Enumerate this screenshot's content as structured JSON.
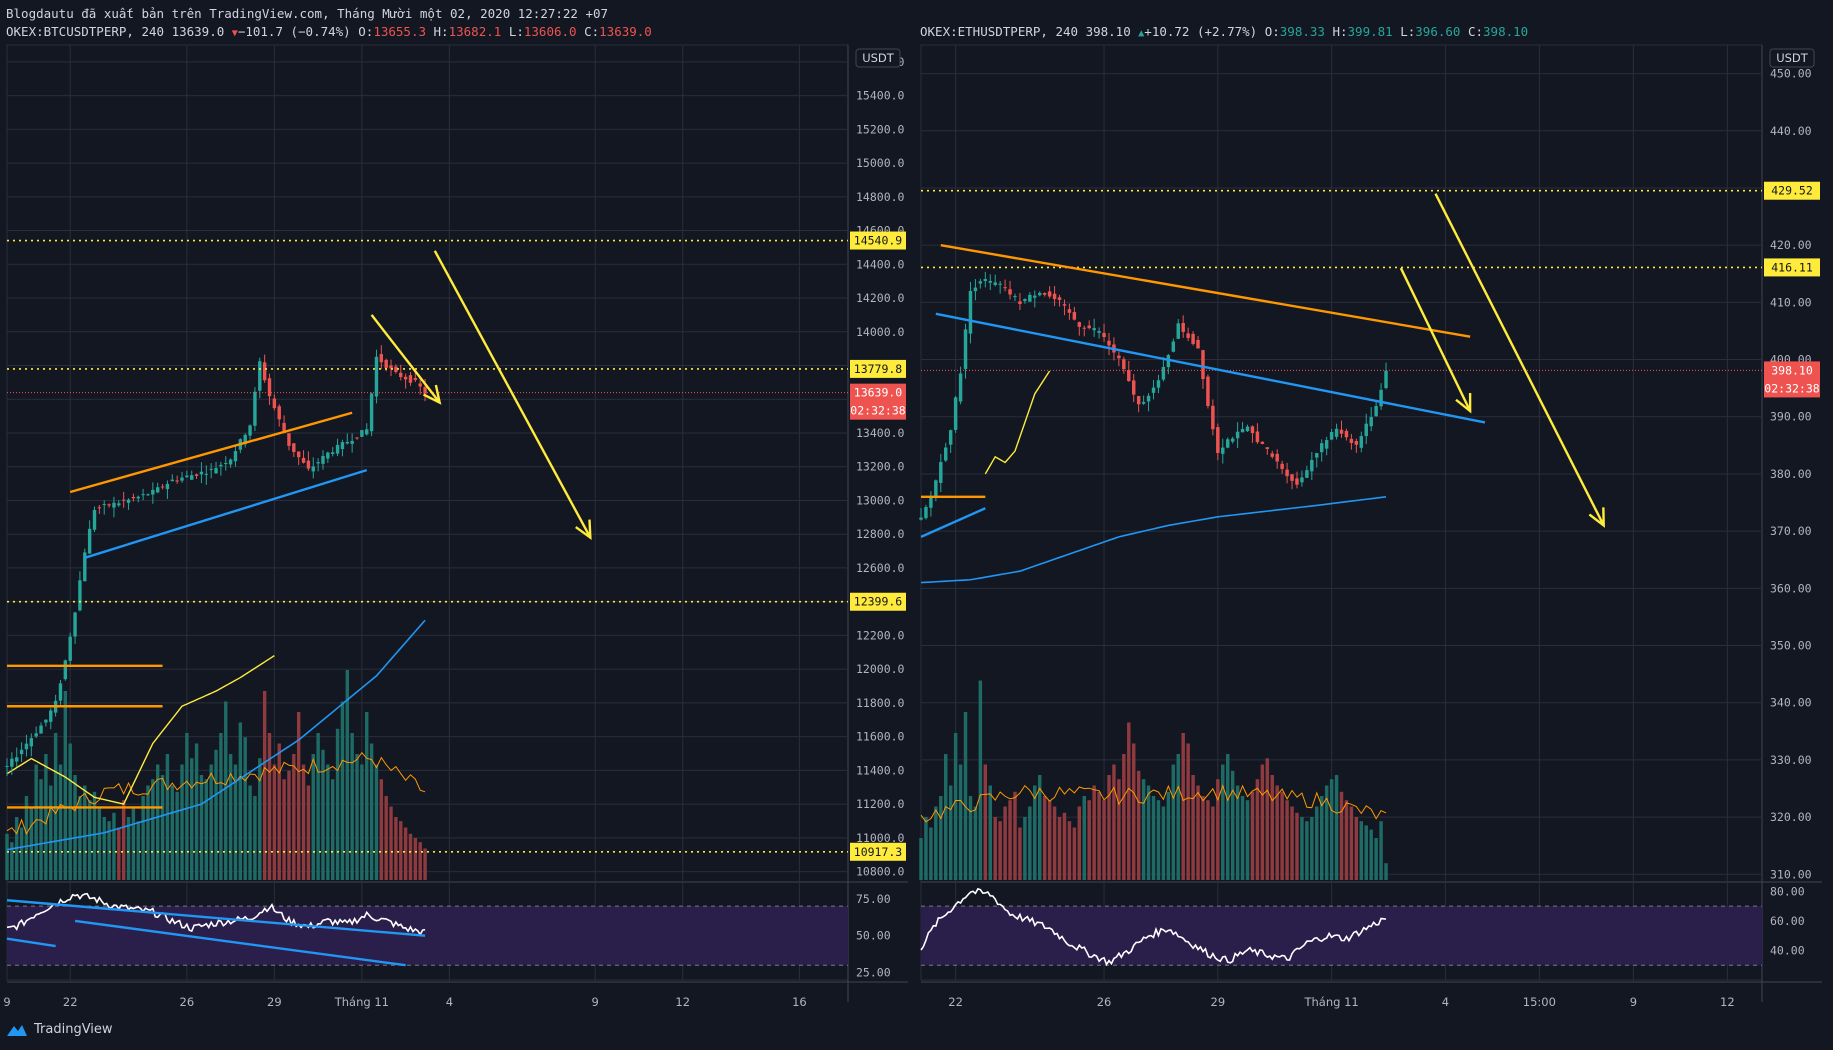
{
  "header": {
    "publish_line": "Blogdautu đã xuất bản trên TradingView.com, Tháng Mười một 02, 2020 12:27:22 +07"
  },
  "colors": {
    "background": "#131722",
    "grid": "#2a2e39",
    "up": "#26a69a",
    "down": "#ef5350",
    "vol_up": "#1e6b66",
    "vol_down": "#8e3a3e",
    "level": "#ffeb3b",
    "arrow": "#ffeb3b",
    "trend_orange": "#ff9800",
    "trend_blue": "#2196f3",
    "ma": "#ff9800",
    "rsi": "#ffffff",
    "rsi_band": "#2a1f4a",
    "price_tag": "#ef5350"
  },
  "branding": {
    "logo_text": "TradingView",
    "logo_icon": "tradingview-logo-icon"
  },
  "chart_data": [
    {
      "type": "candlestick",
      "symbol_line": {
        "symbol": "OKEX:BTCUSDTPERP, 240",
        "last": "13639.0",
        "change_arrow": "down-triangle",
        "change": "−101.7 (−0.74%)",
        "o_label": "O:",
        "o": "13655.3",
        "h_label": "H:",
        "h": "13682.1",
        "l_label": "L:",
        "l": "13606.0",
        "c_label": "C:",
        "c": "13639.0"
      },
      "currency": "USDT",
      "ylim": [
        10750,
        15700
      ],
      "y_ticks": [
        "15600.0",
        "15400.0",
        "15200.0",
        "15000.0",
        "14800.0",
        "14600.0",
        "14400.0",
        "14200.0",
        "14000.0",
        "13800.0",
        "13600.0",
        "13400.0",
        "13200.0",
        "13000.0",
        "12800.0",
        "12600.0",
        "12400.0",
        "12200.0",
        "12000.0",
        "11800.0",
        "11600.0",
        "11400.0",
        "11200.0",
        "11000.0",
        "10800.0"
      ],
      "x_ticks": [
        {
          "label": "9",
          "x": 0
        },
        {
          "label": "22",
          "x": 13
        },
        {
          "label": "26",
          "x": 37
        },
        {
          "label": "29",
          "x": 55
        },
        {
          "label": "Tháng 11",
          "x": 73
        },
        {
          "label": "4",
          "x": 91
        },
        {
          "label": "9",
          "x": 121
        },
        {
          "label": "12",
          "x": 139
        },
        {
          "label": "16",
          "x": 163
        }
      ],
      "xlim": [
        0,
        173
      ],
      "last_bar": 86,
      "levels": [
        {
          "value": 14540.9,
          "label": "14540.9"
        },
        {
          "value": 13779.8,
          "label": "13779.8"
        },
        {
          "value": 12399.6,
          "label": "12399.6"
        },
        {
          "value": 10917.3,
          "label": "10917.3"
        }
      ],
      "current_price": {
        "value": 13639.0,
        "label": "13639.0",
        "countdown": "02:32:38"
      },
      "anchors": [
        [
          0,
          11420
        ],
        [
          4,
          11560
        ],
        [
          8,
          11700
        ],
        [
          10,
          11800
        ],
        [
          12,
          12050
        ],
        [
          14,
          12350
        ],
        [
          16,
          12700
        ],
        [
          18,
          12950
        ],
        [
          22,
          12980
        ],
        [
          26,
          13010
        ],
        [
          30,
          13050
        ],
        [
          34,
          13120
        ],
        [
          38,
          13150
        ],
        [
          42,
          13180
        ],
        [
          46,
          13250
        ],
        [
          50,
          13450
        ],
        [
          52,
          13820
        ],
        [
          54,
          13620
        ],
        [
          58,
          13330
        ],
        [
          62,
          13180
        ],
        [
          66,
          13280
        ],
        [
          70,
          13350
        ],
        [
          74,
          13420
        ],
        [
          76,
          13850
        ],
        [
          80,
          13750
        ],
        [
          84,
          13700
        ],
        [
          86,
          13639
        ]
      ],
      "trendlines": [
        {
          "color": "orange",
          "from": [
            13,
            13050
          ],
          "to": [
            71,
            13520
          ]
        },
        {
          "color": "blue",
          "from": [
            16,
            12660
          ],
          "to": [
            74,
            13180
          ]
        },
        {
          "color": "orange",
          "from": [
            0,
            12020
          ],
          "to": [
            32,
            12020
          ]
        },
        {
          "color": "orange",
          "from": [
            0,
            11780
          ],
          "to": [
            32,
            11780
          ]
        },
        {
          "color": "orange",
          "from": [
            0,
            11180
          ],
          "to": [
            32,
            11180
          ]
        }
      ],
      "arrows": [
        {
          "from": [
            75,
            14100
          ],
          "to": [
            89,
            13580
          ]
        },
        {
          "from": [
            88,
            14480
          ],
          "to": [
            120,
            12780
          ]
        }
      ],
      "ma_long": [
        [
          0,
          10930
        ],
        [
          20,
          11030
        ],
        [
          40,
          11200
        ],
        [
          60,
          11580
        ],
        [
          76,
          11960
        ],
        [
          86,
          12290
        ]
      ],
      "ma_short": [
        [
          0,
          11380
        ],
        [
          5,
          11470
        ],
        [
          12,
          11360
        ],
        [
          18,
          11240
        ],
        [
          24,
          11200
        ],
        [
          30,
          11560
        ],
        [
          36,
          11780
        ],
        [
          43,
          11870
        ],
        [
          48,
          11950
        ],
        [
          55,
          12080
        ]
      ],
      "volume_max": 100,
      "volume": [
        22,
        18,
        30,
        25,
        40,
        35,
        55,
        48,
        60,
        45,
        70,
        55,
        90,
        65,
        50,
        40,
        45,
        38,
        42,
        35,
        30,
        28,
        32,
        25,
        38,
        30,
        35,
        28,
        40,
        45,
        48,
        55,
        50,
        60,
        45,
        42,
        55,
        70,
        58,
        65,
        50,
        48,
        55,
        62,
        70,
        85,
        60,
        55,
        75,
        68,
        45,
        40,
        58,
        90,
        70,
        55,
        65,
        48,
        52,
        60,
        80,
        55,
        45,
        60,
        70,
        62,
        55,
        48,
        72,
        85,
        100,
        70,
        60,
        55,
        80,
        65,
        55,
        48,
        40,
        35,
        30,
        28,
        25,
        22,
        20,
        18,
        15
      ],
      "volume_ma": [
        [
          0,
          22
        ],
        [
          20,
          42
        ],
        [
          40,
          48
        ],
        [
          55,
          52
        ],
        [
          65,
          55
        ],
        [
          75,
          58
        ],
        [
          86,
          42
        ]
      ],
      "rsi": {
        "ticks": [
          "75.00",
          "50.00",
          "25.00"
        ],
        "band": [
          30,
          70
        ],
        "series": [
          [
            0,
            54
          ],
          [
            3,
            58
          ],
          [
            6,
            65
          ],
          [
            10,
            72
          ],
          [
            14,
            78
          ],
          [
            18,
            75
          ],
          [
            22,
            70
          ],
          [
            26,
            68
          ],
          [
            30,
            66
          ],
          [
            34,
            60
          ],
          [
            38,
            55
          ],
          [
            42,
            58
          ],
          [
            46,
            60
          ],
          [
            50,
            62
          ],
          [
            54,
            70
          ],
          [
            58,
            60
          ],
          [
            62,
            56
          ],
          [
            66,
            60
          ],
          [
            70,
            58
          ],
          [
            74,
            64
          ],
          [
            78,
            60
          ],
          [
            82,
            55
          ],
          [
            86,
            52
          ]
        ],
        "trendlines": [
          {
            "from": [
              0,
              74
            ],
            "to": [
              86,
              50
            ]
          },
          {
            "from": [
              14,
              60
            ],
            "to": [
              82,
              30
            ]
          },
          {
            "from": [
              0,
              48
            ],
            "to": [
              10,
              43
            ]
          }
        ]
      }
    },
    {
      "type": "candlestick",
      "symbol_line": {
        "symbol": "OKEX:ETHUSDTPERP, 240",
        "last": "398.10",
        "change_arrow": "up-triangle",
        "change": "+10.72 (+2.77%)",
        "o_label": "O:",
        "o": "398.33",
        "h_label": "H:",
        "h": "399.81",
        "l_label": "L:",
        "l": "396.60",
        "c_label": "C:",
        "c": "398.10"
      },
      "currency": "USDT",
      "ylim": [
        309,
        455
      ],
      "y_ticks": [
        "450.00",
        "440.00",
        "430.00",
        "420.00",
        "410.00",
        "400.00",
        "390.00",
        "380.00",
        "370.00",
        "360.00",
        "350.00",
        "340.00",
        "330.00",
        "320.00",
        "310.00"
      ],
      "x_ticks": [
        {
          "label": "22",
          "x": 7
        },
        {
          "label": "26",
          "x": 37
        },
        {
          "label": "29",
          "x": 60
        },
        {
          "label": "Tháng 11",
          "x": 83
        },
        {
          "label": "4",
          "x": 106
        },
        {
          "label": "15:00",
          "x": 125
        },
        {
          "label": "9",
          "x": 144
        },
        {
          "label": "12",
          "x": 163
        }
      ],
      "xlim": [
        0,
        170
      ],
      "last_bar": 94,
      "levels": [
        {
          "value": 429.52,
          "label": "429.52"
        },
        {
          "value": 416.11,
          "label": "416.11"
        }
      ],
      "current_price": {
        "value": 398.1,
        "label": "398.10",
        "countdown": "02:32:38"
      },
      "anchors": [
        [
          0,
          372
        ],
        [
          2,
          376
        ],
        [
          4,
          382
        ],
        [
          6,
          388
        ],
        [
          8,
          398
        ],
        [
          10,
          412
        ],
        [
          12,
          414
        ],
        [
          16,
          413
        ],
        [
          20,
          410
        ],
        [
          24,
          412
        ],
        [
          28,
          410
        ],
        [
          32,
          406
        ],
        [
          36,
          405
        ],
        [
          40,
          400
        ],
        [
          44,
          392
        ],
        [
          48,
          396
        ],
        [
          52,
          406
        ],
        [
          56,
          402
        ],
        [
          58,
          392
        ],
        [
          60,
          384
        ],
        [
          62,
          386
        ],
        [
          66,
          388
        ],
        [
          70,
          384
        ],
        [
          74,
          380
        ],
        [
          76,
          378
        ],
        [
          80,
          384
        ],
        [
          84,
          388
        ],
        [
          88,
          385
        ],
        [
          92,
          392
        ],
        [
          94,
          398
        ]
      ],
      "trendlines": [
        {
          "color": "orange",
          "from": [
            4,
            420
          ],
          "to": [
            111,
            404
          ]
        },
        {
          "color": "blue",
          "from": [
            3,
            408
          ],
          "to": [
            114,
            389
          ]
        },
        {
          "color": "orange",
          "from": [
            0,
            376
          ],
          "to": [
            13,
            376
          ]
        },
        {
          "color": "blue",
          "from": [
            0,
            369
          ],
          "to": [
            13,
            374
          ]
        }
      ],
      "arrows": [
        {
          "from": [
            97,
            416
          ],
          "to": [
            111,
            391
          ]
        },
        {
          "from": [
            104,
            429
          ],
          "to": [
            138,
            371
          ]
        }
      ],
      "ma_long": [
        [
          0,
          361
        ],
        [
          10,
          361.5
        ],
        [
          20,
          363
        ],
        [
          30,
          366
        ],
        [
          40,
          369
        ],
        [
          50,
          371
        ],
        [
          60,
          372.5
        ],
        [
          70,
          373.5
        ],
        [
          80,
          374.5
        ],
        [
          94,
          376
        ]
      ],
      "ma_short": [
        [
          13,
          380
        ],
        [
          15,
          383
        ],
        [
          17,
          382
        ],
        [
          19,
          384
        ],
        [
          21,
          389
        ],
        [
          23,
          394
        ],
        [
          26,
          398
        ]
      ],
      "volume_max": 100,
      "volume": [
        20,
        30,
        25,
        35,
        40,
        60,
        45,
        70,
        55,
        80,
        40,
        35,
        95,
        55,
        45,
        30,
        28,
        35,
        38,
        42,
        25,
        30,
        35,
        45,
        50,
        40,
        38,
        35,
        30,
        32,
        28,
        25,
        35,
        40,
        38,
        45,
        42,
        38,
        50,
        55,
        48,
        60,
        75,
        65,
        52,
        48,
        45,
        40,
        38,
        35,
        42,
        55,
        60,
        70,
        65,
        50,
        45,
        40,
        38,
        35,
        48,
        55,
        60,
        52,
        45,
        40,
        38,
        42,
        48,
        55,
        58,
        50,
        45,
        42,
        38,
        35,
        32,
        30,
        28,
        30,
        35,
        40,
        45,
        48,
        50,
        42,
        38,
        35,
        30,
        28,
        26,
        24,
        20,
        28,
        8
      ],
      "volume_ma": [
        [
          0,
          30
        ],
        [
          20,
          42
        ],
        [
          40,
          40
        ],
        [
          60,
          42
        ],
        [
          80,
          38
        ],
        [
          94,
          30
        ]
      ],
      "rsi": {
        "ticks": [
          "80.00",
          "60.00",
          "40.00"
        ],
        "band": [
          30,
          70
        ],
        "series": [
          [
            0,
            42
          ],
          [
            3,
            58
          ],
          [
            6,
            68
          ],
          [
            10,
            80
          ],
          [
            14,
            78
          ],
          [
            18,
            65
          ],
          [
            22,
            60
          ],
          [
            26,
            55
          ],
          [
            30,
            45
          ],
          [
            34,
            38
          ],
          [
            38,
            32
          ],
          [
            42,
            40
          ],
          [
            46,
            50
          ],
          [
            50,
            55
          ],
          [
            54,
            46
          ],
          [
            58,
            38
          ],
          [
            62,
            33
          ],
          [
            66,
            40
          ],
          [
            70,
            37
          ],
          [
            74,
            34
          ],
          [
            78,
            45
          ],
          [
            82,
            50
          ],
          [
            86,
            48
          ],
          [
            90,
            55
          ],
          [
            94,
            62
          ]
        ],
        "trendlines": []
      }
    }
  ]
}
